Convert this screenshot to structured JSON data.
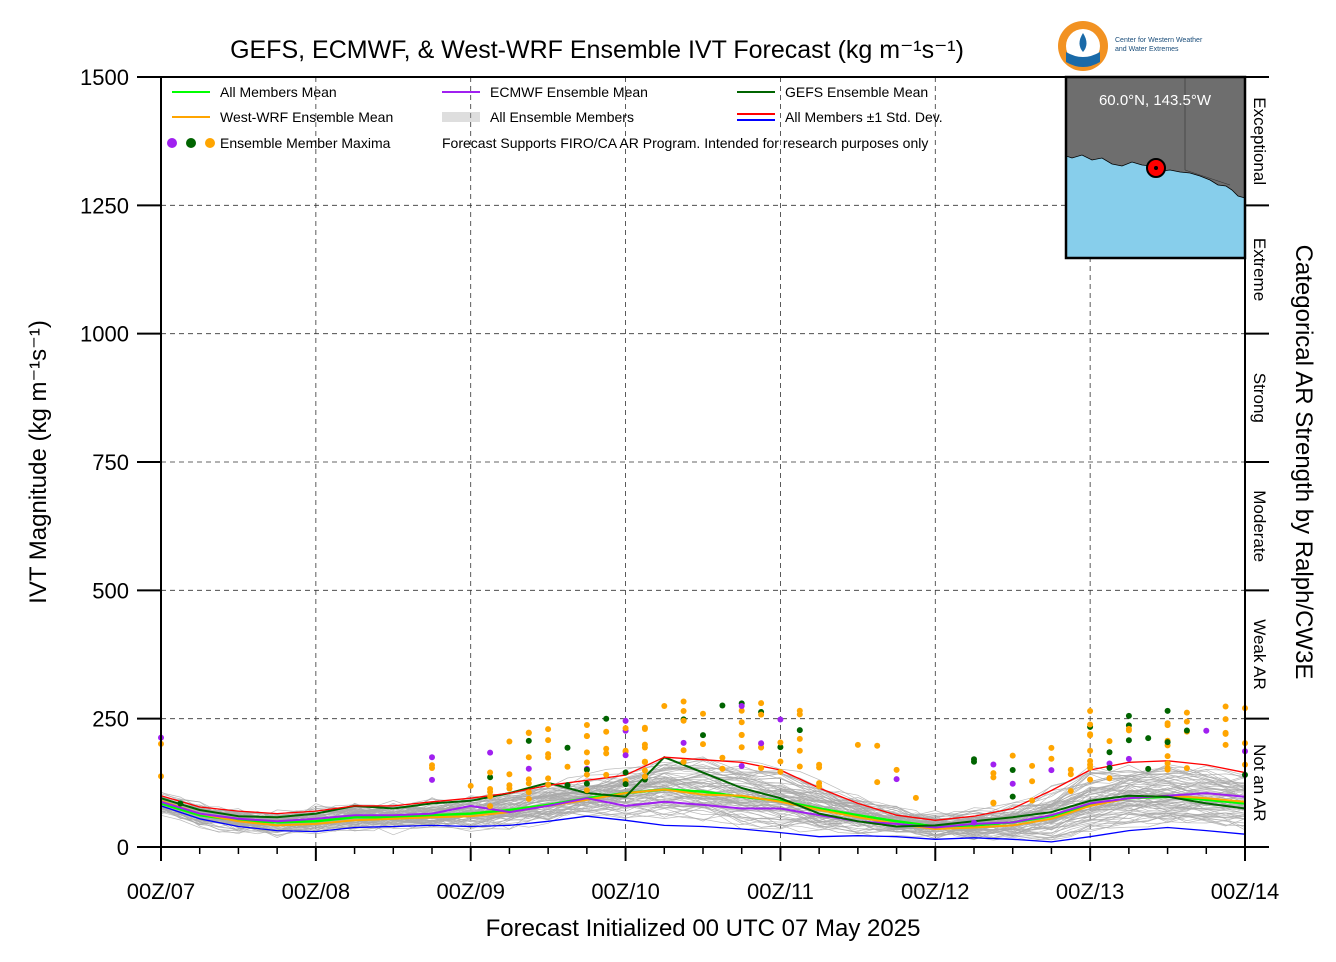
{
  "chart_data": {
    "type": "line",
    "title": "GEFS, ECMWF, & West-WRF Ensemble IVT Forecast (kg m⁻¹s⁻¹)",
    "xlabel": "Forecast Initialized 00 UTC 07 May 2025",
    "ylabel": "IVT Magnitude (kg m⁻¹s⁻¹)",
    "right_label": "Categorical AR Strength by Ralph/CW3E",
    "xlim": [
      0,
      168
    ],
    "ylim": [
      0,
      1500
    ],
    "grid": true,
    "x_tick_values": [
      0,
      24,
      48,
      72,
      96,
      120,
      144,
      168
    ],
    "x_tick_labels": [
      "00Z/07",
      "00Z/08",
      "00Z/09",
      "00Z/10",
      "00Z/11",
      "00Z/12",
      "00Z/13",
      "00Z/14"
    ],
    "y_tick_values": [
      0,
      250,
      500,
      750,
      1000,
      1250,
      1500
    ],
    "y_tick_labels": [
      "0",
      "250",
      "500",
      "750",
      "1000",
      "1250",
      "1500"
    ],
    "categories": [
      {
        "label": "Not an AR",
        "from": 0,
        "to": 250
      },
      {
        "label": "Weak AR",
        "from": 250,
        "to": 500
      },
      {
        "label": "Moderate",
        "from": 500,
        "to": 750
      },
      {
        "label": "Strong",
        "from": 750,
        "to": 1000
      },
      {
        "label": "Extreme",
        "from": 1000,
        "to": 1250
      },
      {
        "label": "Exceptional",
        "from": 1250,
        "to": 1500
      }
    ],
    "legend": {
      "placement": "top-left",
      "items": [
        {
          "label": "All Members Mean",
          "color": "#00ff00",
          "kind": "line"
        },
        {
          "label": "ECMWF Ensemble Mean",
          "color": "#a020f0",
          "kind": "line"
        },
        {
          "label": "GEFS Ensemble Mean",
          "color": "#006400",
          "kind": "line"
        },
        {
          "label": "West-WRF Ensemble Mean",
          "color": "#ffa500",
          "kind": "line"
        },
        {
          "label": "All Ensemble Members",
          "color": "#a9a9a9",
          "kind": "multiline"
        },
        {
          "label": "All Members ±1 Std. Dev.",
          "color": "#ff0000",
          "color2": "#0000ff",
          "kind": "double"
        },
        {
          "label": "Ensemble Member Maxima",
          "color": "#a020f0",
          "kind": "dots"
        }
      ],
      "note": "Forecast Supports FIRO/CA AR Program. Intended for research purposes only"
    },
    "inset": {
      "location_label": "60.0°N, 143.5°W",
      "land_color": "#6e6e6e",
      "water_color": "#87ceeb"
    },
    "x": [
      0,
      6,
      12,
      18,
      24,
      30,
      36,
      42,
      48,
      54,
      60,
      66,
      72,
      78,
      84,
      90,
      96,
      102,
      108,
      114,
      120,
      126,
      132,
      138,
      144,
      150,
      156,
      162,
      168
    ],
    "series": [
      {
        "name": "All Members Mean",
        "color": "#00ff00",
        "width": 2.5,
        "values": [
          85,
          62,
          52,
          48,
          50,
          58,
          58,
          62,
          65,
          72,
          82,
          95,
          105,
          112,
          108,
          98,
          90,
          75,
          62,
          50,
          40,
          42,
          48,
          60,
          82,
          95,
          98,
          92,
          85
        ]
      },
      {
        "name": "West-WRF Ensemble Mean",
        "color": "#ffa500",
        "width": 2,
        "values": [
          90,
          65,
          50,
          42,
          45,
          52,
          55,
          58,
          60,
          68,
          80,
          92,
          105,
          112,
          102,
          100,
          88,
          72,
          58,
          45,
          35,
          38,
          42,
          55,
          80,
          95,
          100,
          95,
          88
        ]
      },
      {
        "name": "ECMWF Ensemble Mean",
        "color": "#a020f0",
        "width": 2,
        "values": [
          88,
          65,
          55,
          50,
          55,
          62,
          62,
          65,
          80,
          68,
          80,
          95,
          80,
          88,
          82,
          75,
          75,
          62,
          50,
          45,
          38,
          45,
          48,
          62,
          85,
          95,
          100,
          105,
          98
        ]
      },
      {
        "name": "GEFS Ensemble Mean",
        "color": "#006400",
        "width": 2,
        "values": [
          95,
          72,
          60,
          58,
          65,
          80,
          75,
          85,
          90,
          105,
          125,
          105,
          98,
          175,
          145,
          115,
          95,
          65,
          50,
          40,
          42,
          50,
          58,
          68,
          90,
          100,
          98,
          85,
          75
        ]
      },
      {
        "name": "All Members ±1 Std. Dev.",
        "color": "#ff0000",
        "width": 1.3,
        "values": [
          100,
          78,
          70,
          65,
          70,
          80,
          80,
          88,
          95,
          105,
          120,
          130,
          140,
          175,
          170,
          165,
          150,
          115,
          85,
          62,
          52,
          60,
          75,
          110,
          150,
          165,
          168,
          160,
          145
        ]
      },
      {
        "name": "",
        "color": "#0000ff",
        "width": 1.3,
        "values": [
          80,
          55,
          40,
          32,
          30,
          38,
          40,
          42,
          40,
          42,
          50,
          60,
          52,
          42,
          40,
          35,
          28,
          20,
          22,
          20,
          15,
          18,
          15,
          10,
          20,
          32,
          38,
          32,
          25
        ]
      }
    ],
    "maxima_colors": [
      "#a020f0",
      "#006400",
      "#ffa500"
    ]
  }
}
